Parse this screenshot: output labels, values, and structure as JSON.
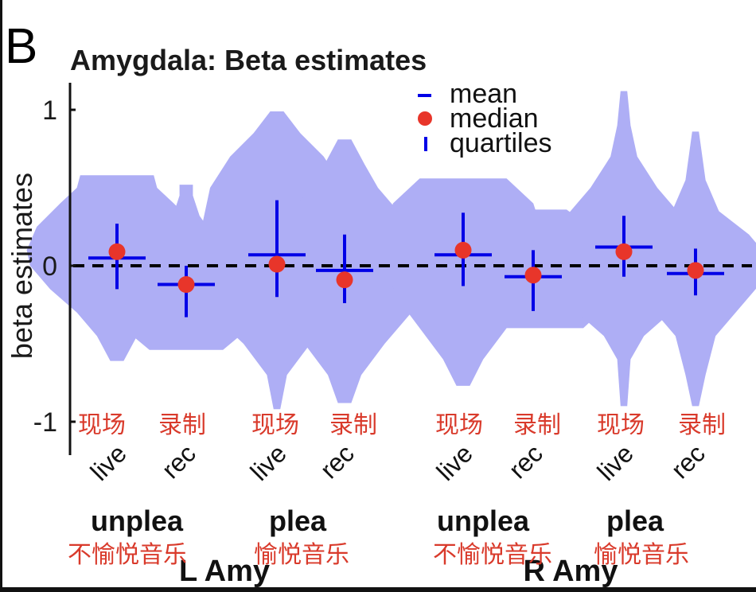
{
  "panel_label": "B",
  "chart_data": {
    "type": "violin",
    "title": "Amygdala:  Beta estimates",
    "ylabel": "beta estimates",
    "xlabel": "",
    "ylim": [
      -1.2,
      1.15
    ],
    "yticks": [
      1,
      0,
      -1
    ],
    "ytick_labels": [
      "1",
      "0",
      "-1"
    ],
    "reference_line": {
      "y": 0,
      "style": "dashed",
      "color": "#000000"
    },
    "legend": {
      "placement": "top-right",
      "entries": [
        {
          "label": "mean",
          "marker": "horizontal-line",
          "color": "#0000e6"
        },
        {
          "label": "median",
          "marker": "dot",
          "color": "#e8352a"
        },
        {
          "label": "quartiles",
          "marker": "vertical-line",
          "color": "#0000e6"
        }
      ]
    },
    "colors": {
      "violin_fill": "#aeaef5",
      "stat_line": "#0000e6",
      "median_dot": "#e8352a",
      "annotation": "#d93a2b"
    },
    "regions": [
      {
        "label": "R Amy",
        "groups": [],
        "_placeholder": true
      }
    ],
    "region_labels": [
      "L Amy",
      "R Amy"
    ],
    "group_labels": [
      "unplea",
      "plea",
      "unplea",
      "plea"
    ],
    "group_labels_zh": [
      "不愉悦音乐",
      "愉悦音乐",
      "不愉悦音乐",
      "愉悦音乐"
    ],
    "categories": [
      "live",
      "rec",
      "live",
      "rec",
      "live",
      "rec",
      "live",
      "rec"
    ],
    "categories_zh": [
      "现场",
      "录制",
      "现场",
      "录制",
      "现场",
      "录制",
      "现场",
      "录制"
    ],
    "series": [
      {
        "name": "L Amy unplea live",
        "region": "L Amy",
        "group": "unplea",
        "condition": "live",
        "min": -0.61,
        "max": 0.58,
        "mean": 0.05,
        "median": 0.09,
        "q1": -0.15,
        "q3": 0.27,
        "profile": [
          [
            -0.61,
            0.02
          ],
          [
            -0.45,
            0.06
          ],
          [
            -0.3,
            0.12
          ],
          [
            -0.15,
            0.2
          ],
          [
            0.0,
            0.26
          ],
          [
            0.1,
            0.27
          ],
          [
            0.25,
            0.24
          ],
          [
            0.4,
            0.17
          ],
          [
            0.5,
            0.12
          ],
          [
            0.58,
            0.11
          ]
        ]
      },
      {
        "name": "L Amy unplea rec",
        "region": "L Amy",
        "group": "unplea",
        "condition": "rec",
        "min": -0.54,
        "max": 0.52,
        "mean": -0.12,
        "median": -0.12,
        "q1": -0.33,
        "q3": 0.0,
        "profile": [
          [
            -0.54,
            0.11
          ],
          [
            -0.45,
            0.16
          ],
          [
            -0.3,
            0.2
          ],
          [
            -0.15,
            0.21
          ],
          [
            0.0,
            0.19
          ],
          [
            0.1,
            0.14
          ],
          [
            0.2,
            0.08
          ],
          [
            0.32,
            0.04
          ],
          [
            0.45,
            0.02
          ],
          [
            0.52,
            0.02
          ]
        ]
      },
      {
        "name": "L Amy plea live",
        "region": "L Amy",
        "group": "plea",
        "condition": "live",
        "min": -0.92,
        "max": 0.99,
        "mean": 0.07,
        "median": 0.01,
        "q1": -0.2,
        "q3": 0.42,
        "profile": [
          [
            -0.92,
            0.01
          ],
          [
            -0.7,
            0.03
          ],
          [
            -0.5,
            0.1
          ],
          [
            -0.3,
            0.2
          ],
          [
            -0.1,
            0.25
          ],
          [
            0.1,
            0.24
          ],
          [
            0.3,
            0.22
          ],
          [
            0.5,
            0.2
          ],
          [
            0.7,
            0.14
          ],
          [
            0.85,
            0.07
          ],
          [
            0.99,
            0.02
          ]
        ]
      },
      {
        "name": "L Amy plea rec",
        "region": "L Amy",
        "group": "plea",
        "condition": "rec",
        "min": -0.88,
        "max": 0.81,
        "mean": -0.03,
        "median": -0.09,
        "q1": -0.24,
        "q3": 0.2,
        "profile": [
          [
            -0.88,
            0.02
          ],
          [
            -0.7,
            0.05
          ],
          [
            -0.5,
            0.12
          ],
          [
            -0.3,
            0.2
          ],
          [
            -0.1,
            0.23
          ],
          [
            0.1,
            0.22
          ],
          [
            0.3,
            0.18
          ],
          [
            0.5,
            0.1
          ],
          [
            0.65,
            0.06
          ],
          [
            0.81,
            0.02
          ]
        ]
      },
      {
        "name": "R Amy unplea live",
        "region": "R Amy",
        "group": "unplea",
        "condition": "live",
        "min": -0.77,
        "max": 0.56,
        "mean": 0.07,
        "median": 0.1,
        "q1": -0.13,
        "q3": 0.34,
        "profile": [
          [
            -0.77,
            0.02
          ],
          [
            -0.6,
            0.06
          ],
          [
            -0.4,
            0.13
          ],
          [
            -0.2,
            0.2
          ],
          [
            0.0,
            0.23
          ],
          [
            0.2,
            0.24
          ],
          [
            0.4,
            0.21
          ],
          [
            0.5,
            0.16
          ],
          [
            0.56,
            0.13
          ]
        ]
      },
      {
        "name": "R Amy unplea rec",
        "region": "R Amy",
        "group": "unplea",
        "condition": "rec",
        "min": -0.4,
        "max": 0.36,
        "mean": -0.07,
        "median": -0.06,
        "q1": -0.29,
        "q3": 0.1,
        "profile": [
          [
            -0.4,
            0.15
          ],
          [
            -0.3,
            0.2
          ],
          [
            -0.1,
            0.23
          ],
          [
            0.1,
            0.22
          ],
          [
            0.25,
            0.17
          ],
          [
            0.36,
            0.1
          ]
        ]
      },
      {
        "name": "R Amy plea live",
        "region": "R Amy",
        "group": "plea",
        "condition": "live",
        "min": -0.9,
        "max": 1.12,
        "mean": 0.12,
        "median": 0.09,
        "q1": -0.07,
        "q3": 0.32,
        "profile": [
          [
            -0.9,
            0.01
          ],
          [
            -0.6,
            0.02
          ],
          [
            -0.45,
            0.06
          ],
          [
            -0.3,
            0.14
          ],
          [
            -0.1,
            0.21
          ],
          [
            0.1,
            0.23
          ],
          [
            0.3,
            0.18
          ],
          [
            0.5,
            0.1
          ],
          [
            0.7,
            0.04
          ],
          [
            0.9,
            0.02
          ],
          [
            1.12,
            0.01
          ]
        ]
      },
      {
        "name": "R Amy plea rec",
        "region": "R Amy",
        "group": "plea",
        "condition": "rec",
        "min": -0.9,
        "max": 0.86,
        "mean": -0.05,
        "median": -0.03,
        "q1": -0.19,
        "q3": 0.11,
        "profile": [
          [
            -0.9,
            0.01
          ],
          [
            -0.7,
            0.03
          ],
          [
            -0.45,
            0.06
          ],
          [
            -0.25,
            0.14
          ],
          [
            -0.1,
            0.2
          ],
          [
            0.05,
            0.22
          ],
          [
            0.2,
            0.16
          ],
          [
            0.35,
            0.07
          ],
          [
            0.55,
            0.03
          ],
          [
            0.86,
            0.01
          ]
        ]
      }
    ]
  }
}
